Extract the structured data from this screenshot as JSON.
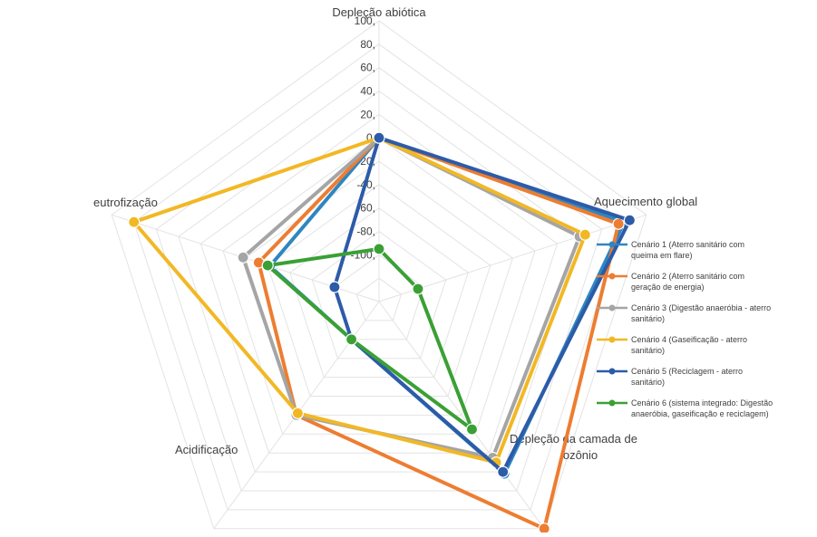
{
  "chart_data": {
    "type": "radar",
    "title": "",
    "axes": [
      "Depleção abiótica",
      "Aquecimento global",
      "Depleção da camada de ozônio",
      "Acidificação",
      "eutrofização"
    ],
    "axis_label_lines": [
      [
        "Depleção abiótica"
      ],
      [
        "Aquecimento global"
      ],
      [
        "Depleção da camada de",
        "ozônio"
      ],
      [
        "Acidificação"
      ],
      [
        "eutrofização"
      ]
    ],
    "rlim": [
      -140,
      100
    ],
    "ticks": [
      {
        "value": 100,
        "label": "100,"
      },
      {
        "value": 80,
        "label": "80,"
      },
      {
        "value": 60,
        "label": "60,"
      },
      {
        "value": 40,
        "label": "40,"
      },
      {
        "value": 20,
        "label": "20,"
      },
      {
        "value": 0,
        "label": "0,"
      },
      {
        "value": -20,
        "label": "-20,"
      },
      {
        "value": -40,
        "label": "-40,"
      },
      {
        "value": -60,
        "label": "-60,"
      },
      {
        "value": -80,
        "label": "-80,"
      },
      {
        "value": -100,
        "label": "-100,"
      }
    ],
    "grid": true,
    "legend_position": "right",
    "series": [
      {
        "name": "Cenário 1 (Aterro sanitário com queima em flare)",
        "legend_lines": [
          "Cenário 1 (Aterro sanitário com",
          "queima em flare)"
        ],
        "color": "#2E86C1",
        "values": [
          0,
          80,
          42,
          -100,
          -42
        ]
      },
      {
        "name": "Cenário 2 (Aterro sanitário com geração de energia)",
        "legend_lines": [
          "Cenário 2 (Aterro sanitário com",
          "geração de energia)"
        ],
        "color": "#ED7D31",
        "values": [
          0,
          75,
          100,
          -20,
          -32
        ]
      },
      {
        "name": "Cenário 3 (Digestão anaeróbia - aterro sanitário)",
        "legend_lines": [
          "Cenário 3 (Digestão anaeróbia - aterro",
          "sanitário)"
        ],
        "color": "#A5A5A5",
        "values": [
          0,
          40,
          25,
          -20,
          -18
        ]
      },
      {
        "name": "Cenário 4 (Gaseificação - aterro sanitário)",
        "legend_lines": [
          "Cenário 4 (Gaseificação - aterro",
          "sanitário)"
        ],
        "color": "#F2B824",
        "values": [
          0,
          45,
          30,
          -22,
          80
        ]
      },
      {
        "name": "Cenário 5 (Reciclagem - aterro sanitário)",
        "legend_lines": [
          "Cenário 5 (Reciclagem - aterro",
          "sanitário)"
        ],
        "color": "#2C5BA8",
        "values": [
          0,
          85,
          40,
          -100,
          -100
        ]
      },
      {
        "name": "Cenário 6 (sistema integrado: Digestão anaeróbia, gaseificação e reciclagem)",
        "legend_lines": [
          "Cenário 6 (sistema integrado: Digestão",
          "anaeróbia, gaseificação e reciclagem)"
        ],
        "color": "#3AA035",
        "values": [
          -95,
          -105,
          -5,
          -100,
          -40
        ]
      }
    ]
  }
}
